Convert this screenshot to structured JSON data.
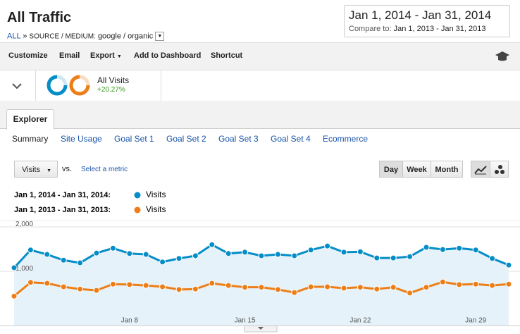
{
  "header": {
    "title": "All Traffic",
    "breadcrumb": {
      "root": "ALL",
      "separator": "»",
      "dimension": "SOURCE / MEDIUM:",
      "value": "google / organic"
    }
  },
  "date_range": {
    "current": "Jan 1, 2014 - Jan 31, 2014",
    "compare_label": "Compare to:",
    "compare": "Jan 1, 2013 - Jan 31, 2013"
  },
  "toolbar": [
    "Customize",
    "Email",
    "Export",
    "Add to Dashboard",
    "Shortcut"
  ],
  "segment": {
    "name": "All Visits",
    "change": "+20.27%"
  },
  "tab": "Explorer",
  "subtabs": [
    "Summary",
    "Site Usage",
    "Goal Set 1",
    "Goal Set 2",
    "Goal Set 3",
    "Goal Set 4",
    "Ecommerce"
  ],
  "controls": {
    "metric": "Visits",
    "vs": "vs.",
    "select_metric": "Select a metric",
    "periods": [
      "Day",
      "Week",
      "Month"
    ]
  },
  "chart_data": {
    "type": "line",
    "categories": [
      null,
      null,
      null,
      null,
      null,
      null,
      null,
      "Jan 8",
      null,
      null,
      null,
      null,
      null,
      null,
      "Jan 15",
      null,
      null,
      null,
      null,
      null,
      null,
      "Jan 22",
      null,
      null,
      null,
      null,
      null,
      null,
      "Jan 29",
      null,
      null
    ],
    "series": [
      {
        "name": "Visits",
        "period": "Jan 1, 2014 - Jan 31, 2014:",
        "color": "#058dc7",
        "fill": "#e6f2f9",
        "values": [
          1080,
          1480,
          1380,
          1250,
          1190,
          1410,
          1520,
          1400,
          1380,
          1210,
          1290,
          1350,
          1600,
          1400,
          1430,
          1350,
          1380,
          1350,
          1480,
          1570,
          1430,
          1440,
          1300,
          1300,
          1330,
          1540,
          1490,
          1520,
          1480,
          1290,
          1140
        ]
      },
      {
        "name": "Visits",
        "period": "Jan 1, 2013 - Jan 31, 2013:",
        "color": "#ed7e17",
        "values": [
          440,
          750,
          730,
          650,
          600,
          570,
          710,
          700,
          680,
          650,
          590,
          600,
          730,
          680,
          640,
          640,
          590,
          520,
          650,
          650,
          620,
          640,
          600,
          640,
          510,
          640,
          760,
          700,
          710,
          680,
          710
        ]
      }
    ],
    "ylim": [
      0,
      2000
    ],
    "yticks": [
      {
        "value": 1000,
        "label": "1,000"
      },
      {
        "value": 2000,
        "label": "2,000"
      }
    ],
    "grid": true
  }
}
